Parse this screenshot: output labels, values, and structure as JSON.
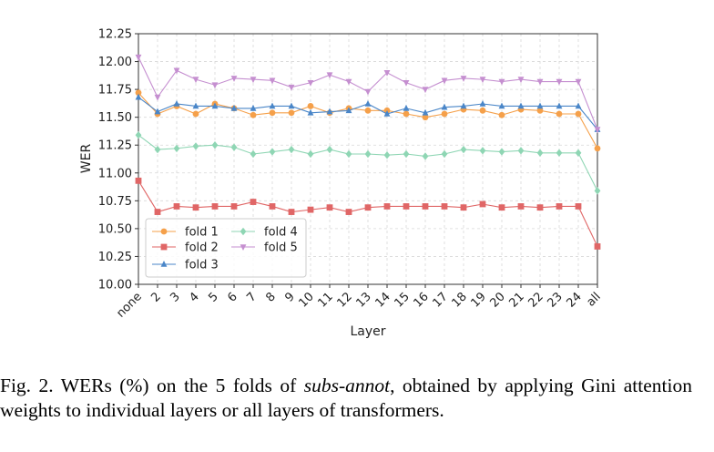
{
  "chart_data": {
    "type": "line",
    "xlabel": "Layer",
    "ylabel": "WER",
    "categories": [
      "none",
      "2",
      "3",
      "4",
      "5",
      "6",
      "7",
      "8",
      "9",
      "10",
      "11",
      "12",
      "13",
      "14",
      "15",
      "16",
      "17",
      "18",
      "19",
      "20",
      "21",
      "22",
      "23",
      "24",
      "all"
    ],
    "ylim": [
      10.0,
      12.25
    ],
    "yticks": [
      "10.00",
      "10.25",
      "10.50",
      "10.75",
      "11.00",
      "11.25",
      "11.50",
      "11.75",
      "12.00",
      "12.25"
    ],
    "grid": true,
    "legend_position": "lower-left",
    "series": [
      {
        "name": "fold 1",
        "color": "#f5a04a",
        "marker": "circle",
        "values": [
          11.72,
          11.53,
          11.6,
          11.53,
          11.62,
          11.58,
          11.52,
          11.54,
          11.54,
          11.6,
          11.54,
          11.58,
          11.56,
          11.56,
          11.53,
          11.5,
          11.53,
          11.57,
          11.56,
          11.52,
          11.57,
          11.56,
          11.53,
          11.53,
          11.22
        ]
      },
      {
        "name": "fold 2",
        "color": "#e06666",
        "marker": "square",
        "values": [
          10.93,
          10.65,
          10.7,
          10.69,
          10.7,
          10.7,
          10.74,
          10.7,
          10.65,
          10.67,
          10.69,
          10.65,
          10.69,
          10.7,
          10.7,
          10.7,
          10.7,
          10.69,
          10.72,
          10.69,
          10.7,
          10.69,
          10.7,
          10.7,
          10.34
        ]
      },
      {
        "name": "fold 3",
        "color": "#4a86c8",
        "marker": "triangle-up",
        "values": [
          11.68,
          11.55,
          11.62,
          11.6,
          11.6,
          11.58,
          11.58,
          11.6,
          11.6,
          11.54,
          11.55,
          11.56,
          11.62,
          11.53,
          11.58,
          11.54,
          11.59,
          11.6,
          11.62,
          11.6,
          11.6,
          11.6,
          11.6,
          11.6,
          11.39
        ]
      },
      {
        "name": "fold 4",
        "color": "#8fd6b4",
        "marker": "diamond",
        "values": [
          11.34,
          11.21,
          11.22,
          11.24,
          11.25,
          11.23,
          11.17,
          11.19,
          11.21,
          11.17,
          11.21,
          11.17,
          11.17,
          11.16,
          11.17,
          11.15,
          11.17,
          11.21,
          11.2,
          11.19,
          11.2,
          11.18,
          11.18,
          11.18,
          10.84
        ]
      },
      {
        "name": "fold 5",
        "color": "#c58fd0",
        "marker": "triangle-down",
        "values": [
          12.04,
          11.68,
          11.92,
          11.84,
          11.79,
          11.85,
          11.84,
          11.83,
          11.77,
          11.81,
          11.88,
          11.82,
          11.73,
          11.9,
          11.81,
          11.75,
          11.83,
          11.85,
          11.84,
          11.82,
          11.84,
          11.82,
          11.82,
          11.82,
          11.39
        ]
      }
    ]
  },
  "caption": {
    "prefix": "Fig. 2.  WERs (%) on the 5 folds of ",
    "emph": "subs-annot",
    "suffix": ", obtained by applying Gini attention weights to individual layers or all layers of transformers."
  }
}
